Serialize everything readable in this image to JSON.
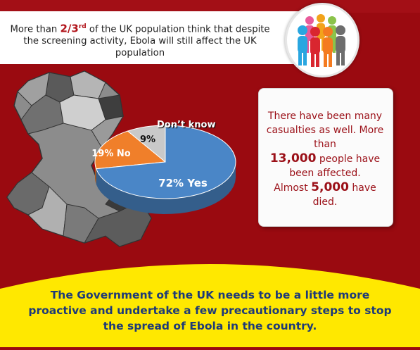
{
  "header": {
    "line1_pre": "More than ",
    "fraction": "2/3",
    "fraction_sup": "rd",
    "line1_post": " of the UK population think that despite the screening activity, Ebola will still affect the UK population"
  },
  "chart_data": {
    "type": "pie",
    "categories": [
      "Yes",
      "No",
      "Don't know"
    ],
    "values": [
      72,
      19,
      9
    ],
    "labels": [
      "72% Yes",
      "19% No",
      "9%"
    ],
    "legend_label": "Don’t know",
    "colors": [
      "#4a86c7",
      "#f07f2a",
      "#c9c9c9"
    ]
  },
  "info_card": {
    "text1": "There have been many casualties as well. More than",
    "number1": "13,000",
    "text2": "people have been affected.",
    "text3": "Almost",
    "number2": "5,000",
    "text4": "have died."
  },
  "footer": {
    "text": "The Government of the UK needs to be a little more proactive and undertake a few precautionary steps to stop the spread of Ebola in the country."
  },
  "colors": {
    "background": "#9a0a10",
    "accent_red": "#b1141b",
    "footer_yellow": "#ffe800",
    "footer_text": "#1e3a78"
  },
  "icons": [
    "people-group-icon",
    "wales-map-illustration"
  ]
}
